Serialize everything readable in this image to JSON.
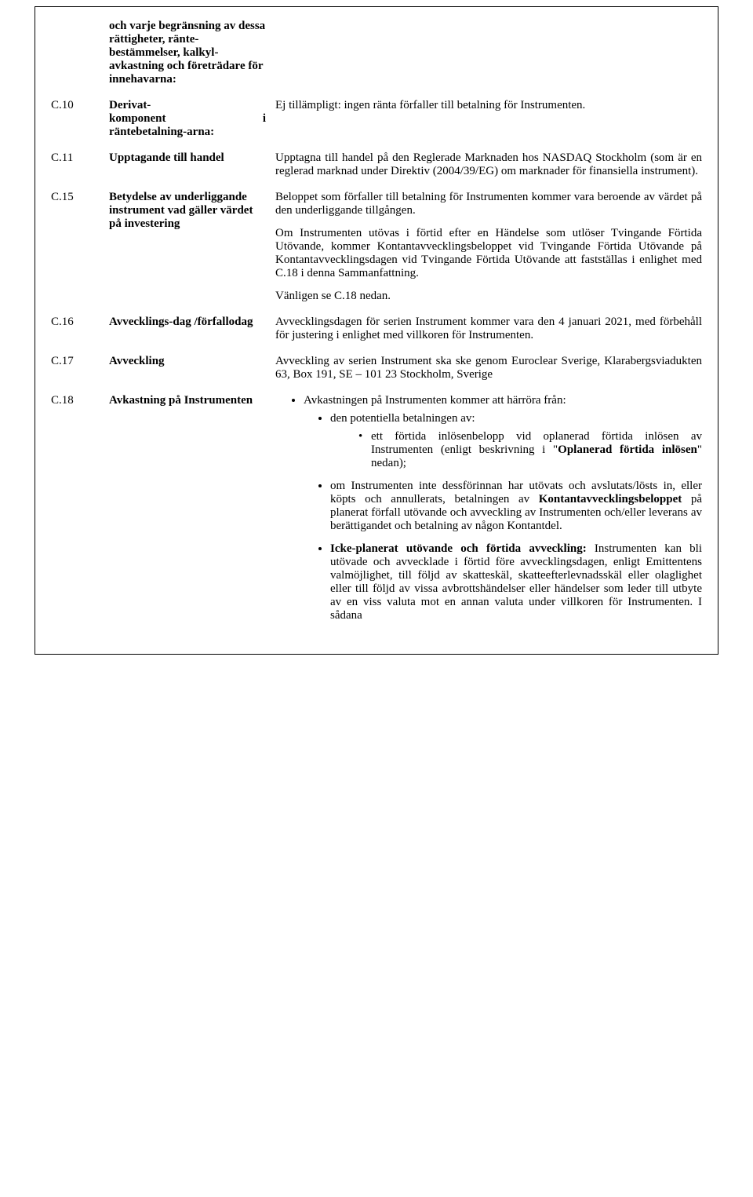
{
  "rows": {
    "r0": {
      "label": "och varje begränsning av dessa rättigheter, ränte-bestämmelser, kalkyl-avkastning och företrädare för innehavarna:"
    },
    "r10": {
      "num": "C.10",
      "label_line1": "Derivat-",
      "label_line2": "komponent",
      "label_line2_right": "i",
      "label_line3": "räntebetalning-arna:",
      "body": "Ej tillämpligt: ingen ränta förfaller till betalning för Instrumenten."
    },
    "r11": {
      "num": "C.11",
      "label": "Upptagande till handel",
      "body": "Upptagna till handel på den Reglerade Marknaden hos NASDAQ Stockholm (som är en reglerad marknad under Direktiv (2004/39/EG) om marknader för finansiella instrument)."
    },
    "r15": {
      "num": "C.15",
      "label": "Betydelse av underliggande instrument vad gäller värdet på investering",
      "p1": "Beloppet som förfaller till betalning för Instrumenten kommer vara beroende av värdet på den underliggande tillgången.",
      "p2": "Om Instrumenten utövas i förtid efter en Händelse som utlöser Tvingande Förtida Utövande, kommer Kontantavvecklingsbeloppet vid Tvingande Förtida Utövande på Kontantavvecklingsdagen vid Tvingande Förtida Utövande att fastställas i enlighet med C.18 i denna Sammanfattning.",
      "p3": "Vänligen se C.18 nedan."
    },
    "r16": {
      "num": "C.16",
      "label": "Avvecklings-dag /förfallodag",
      "body": "Avvecklingsdagen för serien Instrument kommer vara den 4 januari 2021, med förbehåll för justering i enlighet med villkoren för Instrumenten."
    },
    "r17": {
      "num": "C.17",
      "label": "Avveckling",
      "body": "Avveckling av serien Instrument ska ske genom Euroclear Sverige, Klarabergsviadukten 63, Box 191, SE – 101 23 Stockholm, Sverige"
    },
    "r18": {
      "num": "C.18",
      "label": "Avkastning på Instrumenten",
      "b1": "Avkastningen på Instrumenten kommer att härröra från:",
      "b2": "den potentiella betalningen av:",
      "b3a_pre": "ett förtida inlösenbelopp vid oplanerad förtida inlösen av Instrumenten (enligt beskrivning i \"",
      "b3a_bold": "Oplanerad förtida inlösen",
      "b3a_post": "\" nedan);",
      "b4_pre": "om Instrumenten inte dessförinnan har utövats och avslutats/lösts in, eller köpts och annullerats, betalningen av ",
      "b4_bold": "Kontantavvecklingsbeloppet",
      "b4_post": " på planerat förfall utövande och avveckling av Instrumenten och/eller leverans av berättigandet och betalning av någon Kontantdel.",
      "b5_bold": "Icke-planerat utövande och förtida avveckling:",
      "b5_post": " Instrumenten kan bli utövade och avvecklade i förtid före avvecklingsdagen, enligt Emittentens valmöjlighet, till följd av skatteskäl, skatteefterlevnadsskäl eller olaglighet eller till följd av vissa avbrottshändelser eller händelser som leder till utbyte av en viss valuta mot en annan valuta under villkoren för Instrumenten. I sådana"
    }
  }
}
